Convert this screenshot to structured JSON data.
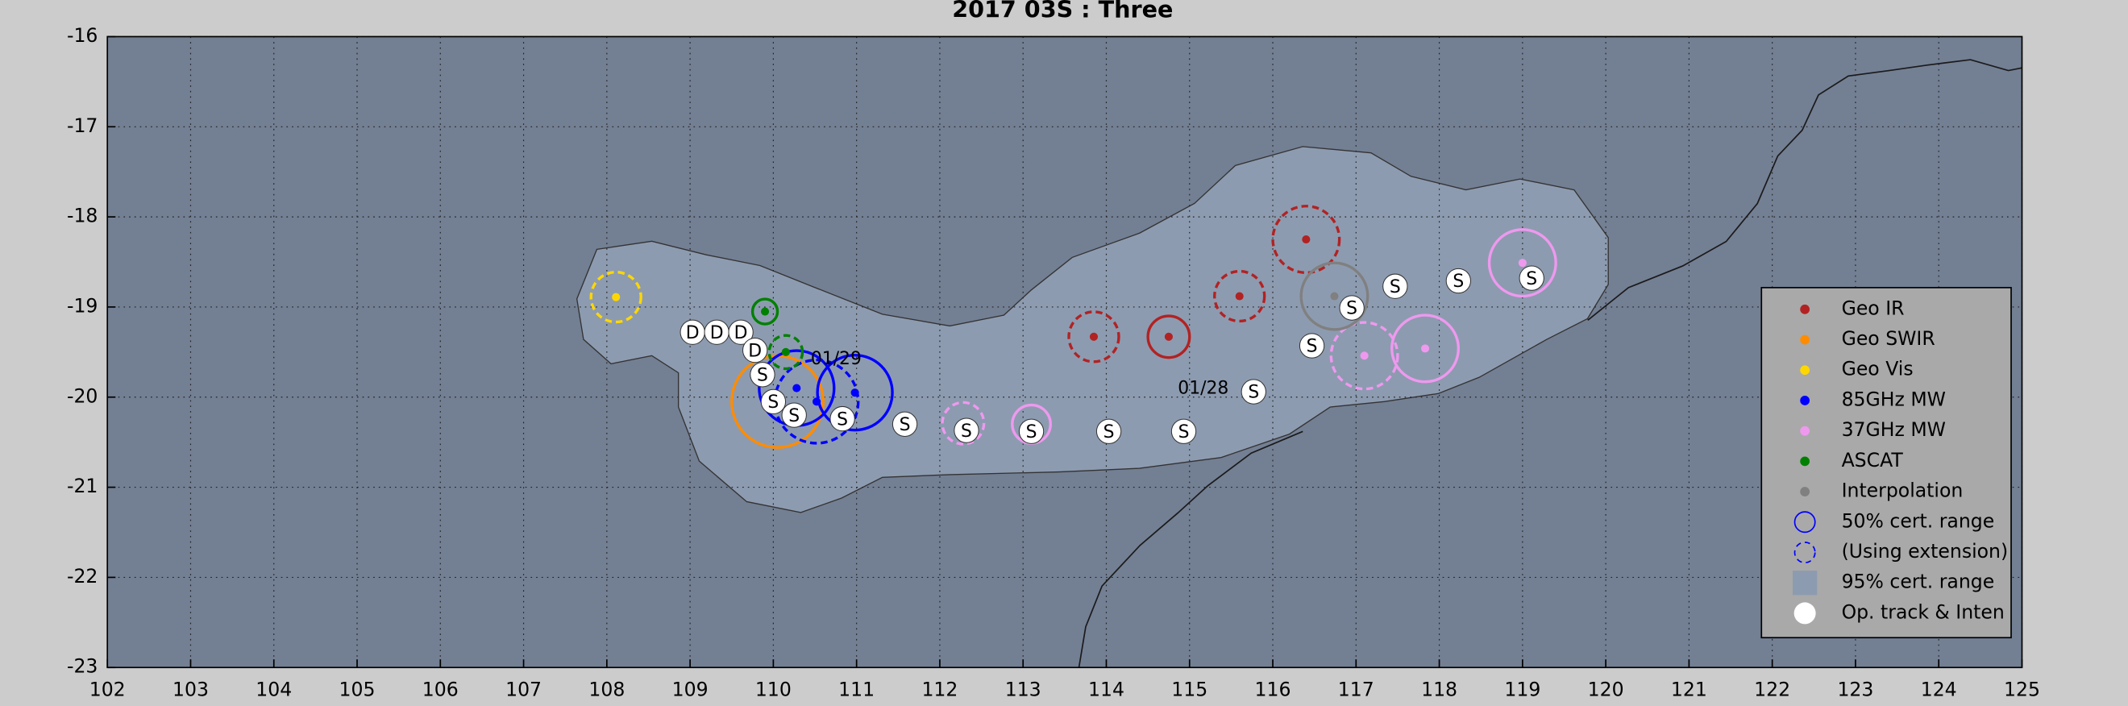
{
  "chart_data": {
    "type": "scatter",
    "title": "2017  03S :  Three",
    "xlim": [
      102,
      125
    ],
    "ylim": [
      -23,
      -16
    ],
    "xticks": [
      102,
      103,
      104,
      105,
      106,
      107,
      108,
      109,
      110,
      111,
      112,
      113,
      114,
      115,
      116,
      117,
      118,
      119,
      120,
      121,
      122,
      123,
      124,
      125
    ],
    "yticks": [
      -16,
      -17,
      -18,
      -19,
      -20,
      -21,
      -22,
      -23
    ],
    "grid": true,
    "series": [
      {
        "name": "Geo IR",
        "color": "#b22222",
        "x": [
          113.85,
          114.75,
          115.6,
          116.4
        ],
        "y": [
          -19.33,
          -19.33,
          -18.88,
          -18.25
        ],
        "radius": [
          0.3,
          0.25,
          0.3,
          0.4
        ],
        "dashed": [
          true,
          false,
          true,
          true
        ]
      },
      {
        "name": "Geo SWIR",
        "color": "#ff8c00",
        "x": [
          110.05
        ],
        "y": [
          -20.05
        ],
        "radius": [
          0.55
        ],
        "dashed": [
          false
        ]
      },
      {
        "name": "Geo Vis",
        "color": "#ffd700",
        "x": [
          108.11
        ],
        "y": [
          -18.89
        ],
        "radius": [
          0.3
        ],
        "dashed": [
          true
        ]
      },
      {
        "name": "85GHz MW",
        "color": "#0000ff",
        "x": [
          110.28,
          110.98,
          110.52
        ],
        "y": [
          -19.9,
          -19.95,
          -20.05
        ],
        "radius": [
          0.45,
          0.45,
          0.5
        ],
        "dashed": [
          false,
          false,
          true
        ]
      },
      {
        "name": "37GHz MW",
        "color": "#ee99ee",
        "x": [
          112.28,
          113.1,
          117.1,
          117.83,
          119.0
        ],
        "y": [
          -20.29,
          -20.3,
          -19.54,
          -19.46,
          -18.51
        ],
        "radius": [
          0.25,
          0.23,
          0.4,
          0.4,
          0.4
        ],
        "dashed": [
          true,
          false,
          true,
          false,
          false
        ]
      },
      {
        "name": "ASCAT",
        "color": "#008000",
        "x": [
          109.9,
          110.15
        ],
        "y": [
          -19.05,
          -19.5
        ],
        "radius": [
          0.15,
          0.2
        ],
        "dashed": [
          false,
          true
        ]
      },
      {
        "name": "Interpolation",
        "color": "#808080",
        "x": [
          116.74
        ],
        "y": [
          -18.88
        ],
        "radius": [
          0.4
        ],
        "dashed": [
          false
        ]
      }
    ],
    "legend_notes": [
      "50% cert. range",
      "(Using extension)"
    ],
    "region": {
      "name": "95% cert. range",
      "color": "#8d9bb0",
      "x": [
        107.88,
        108.54,
        109.19,
        109.84,
        110.49,
        111.31,
        112.12,
        112.77,
        113.1,
        113.59,
        114.4,
        115.06,
        115.55,
        116.36,
        117.18,
        117.66,
        118.32,
        118.97,
        119.62,
        120.03,
        120.03,
        119.78,
        119.29,
        118.48,
        117.99,
        117.34,
        116.69,
        116.2,
        115.38,
        114.4,
        113.43,
        112.12,
        111.31,
        110.82,
        110.33,
        109.68,
        109.11,
        108.86,
        108.86,
        108.54,
        108.05,
        107.72,
        107.64
      ],
      "y": [
        -18.36,
        -18.27,
        -18.42,
        -18.54,
        -18.78,
        -19.08,
        -19.21,
        -19.09,
        -18.81,
        -18.45,
        -18.18,
        -17.85,
        -17.43,
        -17.22,
        -17.29,
        -17.55,
        -17.7,
        -17.58,
        -17.7,
        -18.23,
        -18.75,
        -19.13,
        -19.36,
        -19.78,
        -19.96,
        -20.05,
        -20.11,
        -20.41,
        -20.67,
        -20.79,
        -20.83,
        -20.86,
        -20.89,
        -21.12,
        -21.28,
        -21.16,
        -20.71,
        -20.11,
        -19.73,
        -19.54,
        -19.63,
        -19.36,
        -18.91
      ]
    },
    "track": {
      "name": "Op. track & Inten",
      "color": "#ffffff",
      "x": [
        109.03,
        109.32,
        109.61,
        109.78,
        109.87,
        110.0,
        110.25,
        110.83,
        111.58,
        112.32,
        113.1,
        114.03,
        114.93,
        115.77,
        116.47,
        116.95,
        117.47,
        118.23,
        119.11
      ],
      "y": [
        -19.28,
        -19.28,
        -19.28,
        -19.48,
        -19.75,
        -20.05,
        -20.2,
        -20.24,
        -20.3,
        -20.37,
        -20.38,
        -20.38,
        -20.38,
        -19.94,
        -19.43,
        -19.01,
        -18.77,
        -18.71,
        -18.68
      ],
      "labels": [
        "D",
        "D",
        "D",
        "D",
        "S",
        "S",
        "S",
        "S",
        "S",
        "S",
        "S",
        "S",
        "S",
        "S",
        "S",
        "S",
        "S",
        "S",
        "S"
      ]
    },
    "annotations": [
      {
        "text": "01/29",
        "x": 110.45,
        "y": -19.58
      },
      {
        "text": "01/28",
        "x": 114.86,
        "y": -19.91
      }
    ]
  }
}
